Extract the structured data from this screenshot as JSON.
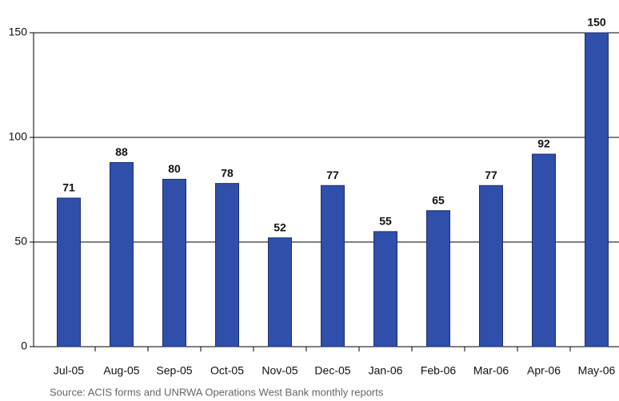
{
  "chart_data": {
    "type": "bar",
    "categories": [
      "Jul-05",
      "Aug-05",
      "Sep-05",
      "Oct-05",
      "Nov-05",
      "Dec-05",
      "Jan-06",
      "Feb-06",
      "Mar-06",
      "Apr-06",
      "May-06"
    ],
    "values": [
      71,
      88,
      80,
      78,
      52,
      77,
      55,
      65,
      77,
      92,
      150
    ],
    "color": "#2f4fab",
    "ylim": [
      0,
      150
    ],
    "yticks": [
      0,
      50,
      100,
      150
    ],
    "grid": true,
    "source": "Source: ACIS forms and UNRWA Operations West Bank monthly reports"
  }
}
